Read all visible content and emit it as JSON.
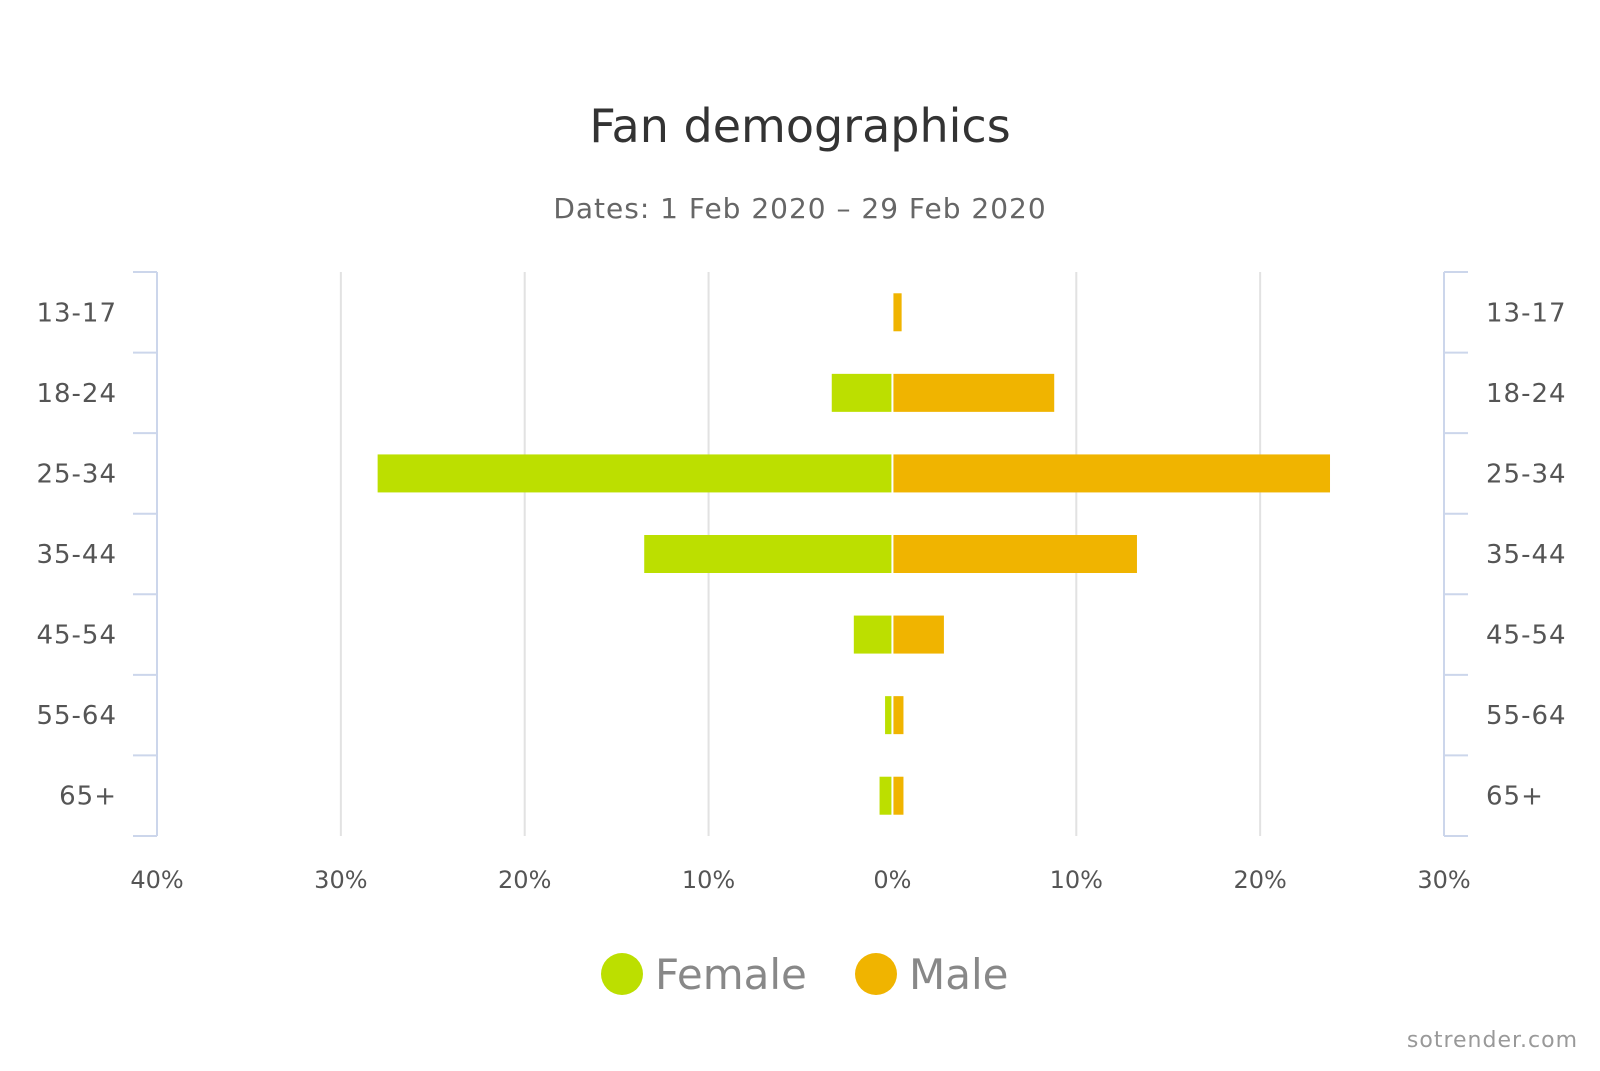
{
  "chart_data": {
    "type": "bar",
    "orientation": "horizontal",
    "layout": "population-pyramid",
    "title": "Fan demographics",
    "subtitle": "Dates: 1 Feb 2020 – 29 Feb 2020",
    "categories": [
      "13-17",
      "18-24",
      "25-34",
      "35-44",
      "45-54",
      "55-64",
      "65+"
    ],
    "series": [
      {
        "name": "Female",
        "side": "left",
        "color": "#bcdf00",
        "values": [
          0,
          3.3,
          28.0,
          13.5,
          2.1,
          0.4,
          0.7
        ]
      },
      {
        "name": "Male",
        "side": "right",
        "color": "#f0b400",
        "values": [
          0.5,
          8.8,
          23.8,
          13.3,
          2.8,
          0.6,
          0.6
        ]
      }
    ],
    "xlim": [
      -40,
      30
    ],
    "x_ticks": [
      -40,
      -30,
      -20,
      -10,
      0,
      10,
      20,
      30
    ],
    "x_tick_labels": [
      "40%",
      "30%",
      "20%",
      "10%",
      "0%",
      "10%",
      "20%",
      "30%"
    ],
    "grid": true,
    "legend_position": "bottom-center",
    "credit": "sotrender.com"
  }
}
